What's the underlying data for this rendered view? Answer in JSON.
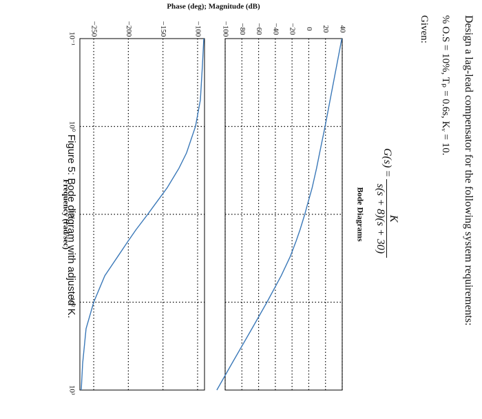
{
  "problem": {
    "statement": "Design a lag-lead compensator for the following system requirements:",
    "requirements": "% O.S = 10%, Tₚ = 0.6s, Kᵥ = 10.",
    "given_label": "Given:",
    "tf_lhs": "G(s)",
    "tf_numerator": "K",
    "tf_denominator": "s(s + 8)(s + 30)",
    "caption": "Figure 5: Bode diagram with adjusted K."
  },
  "chart_data": {
    "type": "line",
    "title": "Bode Diagrams",
    "xlabel": "Frequency (rad/sec)",
    "ylabel": "Phase (deg); Magnitude (dB)",
    "x_scale": "log",
    "xlim": [
      0.1,
      1000
    ],
    "x_ticks": [
      "10⁻¹",
      "10⁰",
      "10¹",
      "10²",
      "10³"
    ],
    "grid": true,
    "colors": {
      "line": "#3a78b8",
      "grid": "#000000",
      "axes": "#000000"
    },
    "magnitude": {
      "ylabel": "Magnitude (dB)",
      "ylim": [
        -100,
        40
      ],
      "y_ticks": [
        40,
        20,
        0,
        -20,
        -40,
        -60,
        -80,
        -100
      ],
      "x": [
        0.1,
        0.2,
        0.5,
        1,
        2,
        3,
        5,
        8,
        10,
        15,
        20,
        30,
        50,
        100,
        200,
        500,
        1000
      ],
      "values": [
        39.5,
        33.5,
        25.5,
        19.5,
        13.0,
        9.3,
        4.0,
        -2.0,
        -4.8,
        -10.5,
        -15.0,
        -22.0,
        -33.0,
        -50.0,
        -68.0,
        -92.0,
        -110.0
      ]
    },
    "phase": {
      "ylabel": "Phase (deg)",
      "ylim": [
        -270,
        -90
      ],
      "y_ticks": [
        -100,
        -150,
        -200,
        -250
      ],
      "x": [
        0.1,
        0.2,
        0.5,
        1,
        2,
        3,
        5,
        8,
        10,
        15,
        20,
        30,
        50,
        100,
        200,
        500,
        1000
      ],
      "values": [
        -91,
        -93,
        -96,
        -103,
        -116,
        -127,
        -144,
        -163,
        -172,
        -189,
        -200,
        -215,
        -234,
        -250,
        -261,
        -266,
        -268
      ]
    }
  }
}
